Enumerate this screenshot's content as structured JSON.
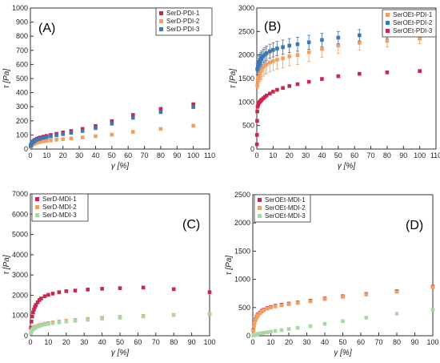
{
  "colors": {
    "red": "#C8274E",
    "orange": "#F0A060",
    "blue": "#3A78B8",
    "green": "#A8D8A8",
    "axis": "#333333"
  },
  "chart_data": [
    {
      "type": "scatter",
      "panel_label": "(A)",
      "xlabel": "γ [%]",
      "ylabel": "τ [Pa]",
      "xlim": [
        0,
        110
      ],
      "ylim": [
        0,
        1000
      ],
      "xticks": [
        "0",
        "10",
        "20",
        "30",
        "40",
        "50",
        "60",
        "70",
        "80",
        "90",
        "100",
        "110"
      ],
      "yticks": [
        "0",
        "100",
        "200",
        "300",
        "400",
        "500",
        "600",
        "700",
        "800",
        "900",
        "1000"
      ],
      "legend_position": "top-right",
      "series": [
        {
          "name": "SerD-PDI-1",
          "color": "red",
          "error_bars": false,
          "x": [
            0.2,
            0.5,
            1,
            1.5,
            2,
            2.5,
            3,
            4,
            5,
            6,
            8,
            10,
            12.5,
            16,
            20,
            25,
            32,
            40,
            50,
            63,
            80,
            100
          ],
          "y": [
            25,
            35,
            45,
            52,
            57,
            62,
            66,
            72,
            77,
            82,
            88,
            93,
            100,
            108,
            118,
            128,
            143,
            163,
            198,
            242,
            285,
            318
          ]
        },
        {
          "name": "SerD-PDI-2",
          "color": "orange",
          "error_bars": false,
          "x": [
            0.2,
            0.5,
            1,
            1.5,
            2,
            2.5,
            3,
            4,
            5,
            6,
            8,
            10,
            12.5,
            16,
            20,
            25,
            32,
            40,
            50,
            63,
            80,
            100
          ],
          "y": [
            15,
            22,
            28,
            33,
            36,
            39,
            41,
            45,
            48,
            51,
            55,
            58,
            61,
            66,
            70,
            75,
            82,
            91,
            102,
            122,
            143,
            165
          ]
        },
        {
          "name": "SerD-PDI-3",
          "color": "blue",
          "error_bars": false,
          "x": [
            0.2,
            0.5,
            1,
            1.5,
            2,
            2.5,
            3,
            4,
            5,
            6,
            8,
            10,
            12.5,
            16,
            20,
            25,
            32,
            40,
            50,
            63,
            80,
            100
          ],
          "y": [
            22,
            32,
            42,
            48,
            53,
            57,
            61,
            66,
            70,
            74,
            80,
            84,
            90,
            97,
            106,
            115,
            128,
            148,
            180,
            222,
            262,
            298
          ]
        }
      ]
    },
    {
      "type": "scatter",
      "panel_label": "(B)",
      "xlabel": "γ [%]",
      "ylabel": "τ [Pa]",
      "xlim": [
        0,
        110
      ],
      "ylim": [
        0,
        3000
      ],
      "xticks": [
        "0",
        "10",
        "20",
        "30",
        "40",
        "50",
        "60",
        "70",
        "80",
        "90",
        "100",
        "110"
      ],
      "yticks": [
        "0",
        "500",
        "1000",
        "1500",
        "2000",
        "2500",
        "3000"
      ],
      "legend_position": "top-right",
      "series": [
        {
          "name": "SerOEt-PDI-1",
          "color": "orange",
          "error_bars": true,
          "x": [
            0.3,
            0.6,
            1,
            1.5,
            2,
            2.5,
            3,
            4,
            5,
            6,
            8,
            10,
            12.5,
            16,
            20,
            25,
            32,
            40,
            50,
            63,
            80,
            100
          ],
          "y": [
            1350,
            1450,
            1520,
            1580,
            1620,
            1660,
            1690,
            1740,
            1780,
            1800,
            1840,
            1870,
            1900,
            1930,
            1970,
            2000,
            2060,
            2130,
            2200,
            2260,
            2300,
            2350
          ],
          "err": [
            150,
            160,
            170,
            180,
            180,
            185,
            190,
            190,
            195,
            195,
            200,
            200,
            200,
            200,
            200,
            200,
            200,
            180,
            170,
            150,
            130,
            110
          ]
        },
        {
          "name": "SerOEt-PDI-2",
          "color": "blue",
          "error_bars": true,
          "x": [
            0.3,
            0.6,
            1,
            1.5,
            2,
            2.5,
            3,
            4,
            5,
            6,
            8,
            10,
            12.5,
            16,
            20,
            25,
            32,
            40,
            50,
            63,
            80,
            100
          ],
          "y": [
            1700,
            1760,
            1800,
            1840,
            1880,
            1910,
            1940,
            1980,
            2010,
            2040,
            2080,
            2110,
            2140,
            2170,
            2200,
            2230,
            2270,
            2320,
            2370,
            2420,
            2460,
            2500
          ],
          "err": [
            120,
            125,
            130,
            135,
            140,
            140,
            145,
            145,
            150,
            150,
            150,
            150,
            150,
            150,
            150,
            150,
            150,
            140,
            130,
            120,
            110,
            100
          ]
        },
        {
          "name": "SerOEt-PDI-3",
          "color": "red",
          "error_bars": true,
          "x": [
            0.05,
            0.1,
            0.2,
            0.3,
            0.5,
            0.8,
            1,
            1.5,
            2,
            2.5,
            3,
            4,
            5,
            6,
            8,
            10,
            12.5,
            16,
            20,
            25,
            32,
            40,
            50,
            63,
            80,
            100
          ],
          "y": [
            100,
            300,
            600,
            800,
            900,
            940,
            960,
            990,
            1010,
            1030,
            1050,
            1080,
            1110,
            1140,
            1180,
            1220,
            1260,
            1300,
            1340,
            1380,
            1430,
            1490,
            1550,
            1600,
            1630,
            1660
          ],
          "err": [
            0,
            0,
            0,
            0,
            0,
            0,
            0,
            0,
            0,
            0,
            0,
            0,
            0,
            0,
            0,
            0,
            0,
            0,
            0,
            0,
            0,
            30,
            30,
            30,
            30,
            30
          ]
        }
      ]
    },
    {
      "type": "scatter",
      "panel_label": "(C)",
      "xlabel": "γ [%]",
      "ylabel": "τ [Pa]",
      "xlim": [
        0,
        100
      ],
      "ylim": [
        0,
        7000
      ],
      "xticks": [
        "0",
        "10",
        "20",
        "30",
        "40",
        "50",
        "60",
        "70",
        "80",
        "90",
        "100"
      ],
      "yticks": [
        "0",
        "1000",
        "2000",
        "3000",
        "4000",
        "5000",
        "6000",
        "7000"
      ],
      "legend_position": "top-left",
      "series": [
        {
          "name": "SerD-MDI-1",
          "color": "red",
          "error_bars": false,
          "x": [
            0.3,
            0.6,
            1,
            1.5,
            2,
            2.5,
            3,
            4,
            5,
            6,
            8,
            10,
            12.5,
            16,
            20,
            25,
            32,
            40,
            50,
            63,
            80,
            100
          ],
          "y": [
            400,
            700,
            950,
            1150,
            1300,
            1420,
            1520,
            1650,
            1760,
            1840,
            1950,
            2020,
            2080,
            2150,
            2200,
            2230,
            2280,
            2320,
            2350,
            2380,
            2300,
            2150
          ]
        },
        {
          "name": "SerD-MDI-2",
          "color": "orange",
          "error_bars": false,
          "x": [
            0.3,
            0.6,
            1,
            1.5,
            2,
            2.5,
            3,
            4,
            5,
            6,
            8,
            10,
            12.5,
            16,
            20,
            25,
            32,
            40,
            50,
            63,
            80,
            100
          ],
          "y": [
            150,
            250,
            320,
            370,
            400,
            430,
            450,
            490,
            520,
            550,
            590,
            620,
            660,
            700,
            740,
            780,
            830,
            880,
            930,
            980,
            1030,
            1070
          ]
        },
        {
          "name": "SerD-MDI-3",
          "color": "green",
          "error_bars": false,
          "x": [
            0.3,
            0.6,
            1,
            1.5,
            2,
            2.5,
            3,
            4,
            5,
            6,
            8,
            10,
            12.5,
            16,
            20,
            25,
            32,
            40,
            50,
            63,
            80,
            100
          ],
          "y": [
            120,
            200,
            270,
            320,
            360,
            390,
            410,
            450,
            480,
            510,
            550,
            580,
            620,
            660,
            700,
            740,
            790,
            840,
            890,
            950,
            1020,
            1090
          ]
        }
      ]
    },
    {
      "type": "scatter",
      "panel_label": "(D)",
      "xlabel": "γ [%]",
      "ylabel": "τ [Pa]",
      "xlim": [
        0,
        100
      ],
      "ylim": [
        0,
        2500
      ],
      "xticks": [
        "0",
        "10",
        "20",
        "30",
        "40",
        "50",
        "60",
        "70",
        "80",
        "90",
        "100"
      ],
      "yticks": [
        "0",
        "500",
        "1000",
        "1500",
        "2000",
        "2500"
      ],
      "legend_position": "top-left",
      "series": [
        {
          "name": "SerOEt-MDI-1",
          "color": "red",
          "error_bars": false,
          "x": [
            0.3,
            0.6,
            1,
            1.5,
            2,
            2.5,
            3,
            4,
            5,
            6,
            8,
            10,
            12.5,
            16,
            20,
            25,
            32,
            40,
            50,
            63,
            80,
            100
          ],
          "y": [
            100,
            180,
            240,
            290,
            330,
            360,
            380,
            410,
            440,
            460,
            490,
            510,
            530,
            550,
            570,
            590,
            620,
            660,
            700,
            740,
            790,
            870
          ]
        },
        {
          "name": "SerOEt-MDI-2",
          "color": "orange",
          "error_bars": false,
          "x": [
            0.3,
            0.6,
            1,
            1.5,
            2,
            2.5,
            3,
            4,
            5,
            6,
            8,
            10,
            12.5,
            16,
            20,
            25,
            32,
            40,
            50,
            63,
            80,
            100
          ],
          "y": [
            90,
            170,
            230,
            280,
            320,
            350,
            370,
            400,
            430,
            450,
            480,
            500,
            520,
            540,
            560,
            580,
            610,
            650,
            690,
            730,
            780,
            860
          ]
        },
        {
          "name": "SerOEt-MDI-3",
          "color": "green",
          "error_bars": false,
          "x": [
            0.3,
            0.6,
            1,
            1.5,
            2,
            2.5,
            3,
            4,
            5,
            6,
            8,
            10,
            12.5,
            16,
            20,
            25,
            32,
            40,
            50,
            63,
            80,
            100
          ],
          "y": [
            5,
            10,
            15,
            20,
            25,
            30,
            34,
            40,
            46,
            52,
            62,
            72,
            84,
            100,
            120,
            140,
            170,
            210,
            260,
            320,
            390,
            460
          ]
        }
      ]
    }
  ]
}
